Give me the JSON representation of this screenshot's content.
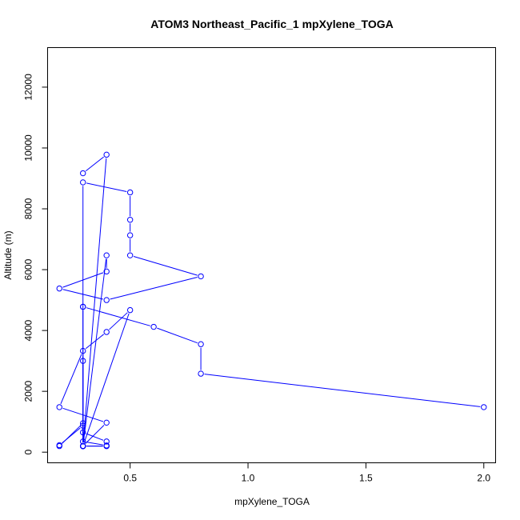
{
  "chart_data": {
    "type": "line",
    "title": "ATOM3 Northeast_Pacific_1 mpXylene_TOGA",
    "xlabel": "mpXylene_TOGA",
    "ylabel": "Altitude (m)",
    "xlim": [
      0.15,
      2.05
    ],
    "ylim": [
      -350,
      13300
    ],
    "xticks": [
      0.5,
      1.0,
      1.5,
      2.0
    ],
    "xtick_labels": [
      "0.5",
      "1.0",
      "1.5",
      "2.0"
    ],
    "yticks": [
      0,
      2000,
      4000,
      6000,
      8000,
      10000,
      12000
    ],
    "ytick_labels": [
      "0",
      "2000",
      "4000",
      "6000",
      "8000",
      "10000",
      "12000"
    ],
    "grid": false,
    "series": [
      {
        "color": "#0000ff",
        "marker": "open-circle",
        "x": [
          0.3,
          0.4,
          0.3,
          0.3,
          0.5,
          0.5,
          0.5,
          0.5,
          0.8,
          0.4,
          0.2,
          0.4,
          0.4,
          0.3,
          0.5,
          0.4,
          0.3,
          0.2,
          0.4,
          0.3,
          0.3,
          0.3,
          0.2,
          0.2,
          0.3,
          0.3,
          0.4,
          0.4,
          0.3,
          0.3,
          0.3,
          0.3,
          0.4,
          0.4,
          0.3,
          0.3,
          0.3,
          0.6,
          0.8,
          0.8,
          2.0
        ],
        "y": [
          9170,
          9780,
          200,
          8870,
          8540,
          7640,
          7130,
          6470,
          5780,
          5000,
          5380,
          5940,
          6470,
          200,
          4670,
          3950,
          3330,
          1480,
          970,
          200,
          3000,
          870,
          230,
          200,
          950,
          650,
          350,
          200,
          200,
          200,
          200,
          350,
          220,
          200,
          200,
          4780,
          4780,
          4120,
          3550,
          2580,
          1480
        ]
      }
    ]
  }
}
